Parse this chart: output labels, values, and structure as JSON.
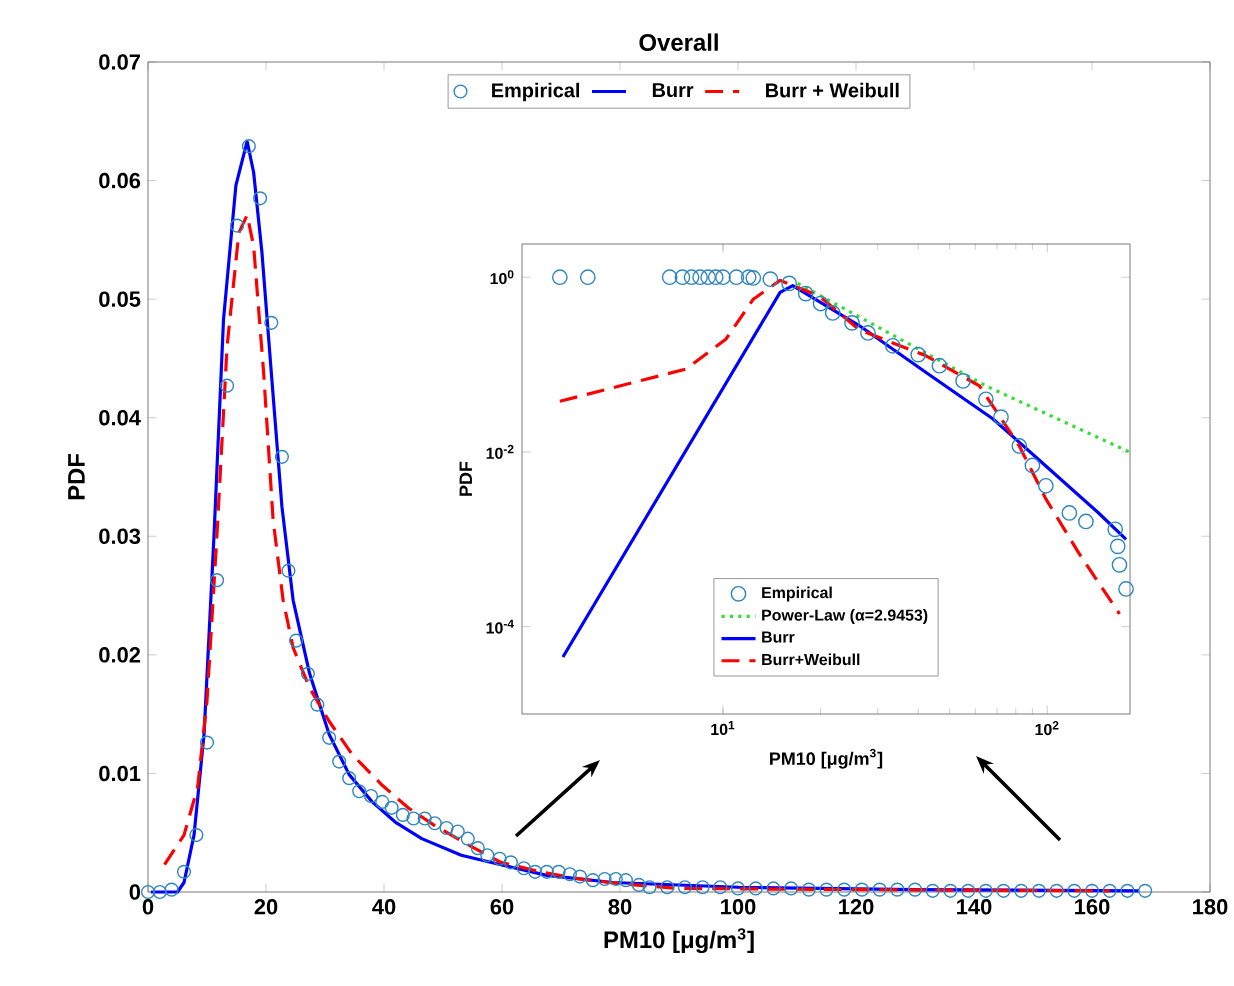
{
  "chart_data": [
    {
      "type": "line",
      "title": "Overall",
      "xlabel": "PM10 [μg/m$^{3}$]",
      "ylabel": "PDF",
      "xlim": [
        0,
        180
      ],
      "ylim": [
        0,
        0.07
      ],
      "xticks": [
        0,
        20,
        40,
        60,
        80,
        100,
        120,
        140,
        160,
        180
      ],
      "yticks": [
        0,
        0.01,
        0.02,
        0.03,
        0.04,
        0.05,
        0.06,
        0.07
      ],
      "legend": "top",
      "series": [
        {
          "name": "Empirical",
          "type": "scatter",
          "marker": "circle",
          "color": "#2e86c1",
          "x": [
            0,
            2,
            4,
            6.1,
            8.2,
            10,
            11.7,
            13.4,
            15.1,
            17.1,
            19,
            20.9,
            22.7,
            23.8,
            25.1,
            27.1,
            28.7,
            30.7,
            32.4,
            34.1,
            35.8,
            37.8,
            39.7,
            41.3,
            43.2,
            45,
            46.9,
            48.6,
            50.6,
            52.5,
            54.2,
            55.9,
            57.5,
            59.6,
            61.5,
            63.7,
            65.6,
            67.6,
            69.6,
            71.5,
            73.2,
            75.4,
            77.4,
            79.3,
            81,
            83.2,
            85,
            88,
            91,
            94,
            97,
            100,
            103,
            106,
            109,
            112,
            115,
            118,
            121,
            124,
            127,
            130,
            133,
            136,
            139,
            142,
            145,
            148,
            151,
            154,
            157,
            160,
            163,
            166,
            169
          ],
          "values": [
            0,
            0,
            0.0002,
            0.0017,
            0.0048,
            0.0126,
            0.0263,
            0.0427,
            0.0562,
            0.0629,
            0.0585,
            0.048,
            0.0367,
            0.0271,
            0.0212,
            0.0184,
            0.0158,
            0.013,
            0.011,
            0.0096,
            0.0085,
            0.0081,
            0.0076,
            0.0071,
            0.0065,
            0.0062,
            0.0062,
            0.0058,
            0.0054,
            0.0051,
            0.0045,
            0.0037,
            0.0031,
            0.0028,
            0.0025,
            0.002,
            0.0017,
            0.0017,
            0.0017,
            0.0015,
            0.0013,
            0.001,
            0.0011,
            0.0011,
            0.001,
            0.0006,
            0.0004,
            0.0004,
            0.0004,
            0.0004,
            0.0004,
            0.0003,
            0.0003,
            0.0003,
            0.0003,
            0.0002,
            0.0002,
            0.0002,
            0.0002,
            0.0002,
            0.0002,
            0.0002,
            0.0001,
            0.0001,
            0.0001,
            0.0001,
            0.0001,
            0.0001,
            0.0001,
            0.0001,
            0.0001,
            0.0001,
            0.0001,
            0.0001,
            0.0001
          ]
        },
        {
          "name": "Burr",
          "type": "line",
          "line_style": "solid",
          "color": "#0000ff",
          "x": [
            0.5,
            5,
            6.1,
            7.8,
            9.5,
            11.2,
            12.8,
            14.9,
            16.8,
            17.9,
            19.3,
            20.9,
            22.7,
            24.6,
            27.4,
            30.7,
            34.1,
            38,
            41.9,
            46.4,
            53.1,
            59.8,
            67.6,
            78.8,
            100,
            130,
            168
          ],
          "values": [
            0,
            0,
            0.0008,
            0.0048,
            0.0133,
            0.0302,
            0.0483,
            0.0596,
            0.0633,
            0.0607,
            0.054,
            0.0438,
            0.0325,
            0.0246,
            0.0184,
            0.0133,
            0.0099,
            0.0076,
            0.0059,
            0.0045,
            0.0031,
            0.0023,
            0.0014,
            0.0008,
            0.0004,
            0.0002,
            0.0001
          ]
        },
        {
          "name": "Burr + Weibull",
          "type": "line",
          "line_style": "dashed",
          "color": "#ff0000",
          "x": [
            2.8,
            6.1,
            8.4,
            10,
            11.7,
            13.4,
            15.4,
            16.8,
            17.9,
            19.6,
            21.2,
            22.9,
            24.6,
            27.4,
            30.7,
            34.6,
            39.7,
            44.1,
            48.6,
            54.2,
            59.8,
            66.5,
            73.2,
            79.9,
            90,
            120,
            163
          ],
          "values": [
            0.0023,
            0.0048,
            0.0088,
            0.0161,
            0.0302,
            0.046,
            0.0556,
            0.0571,
            0.0545,
            0.0438,
            0.0314,
            0.0246,
            0.0206,
            0.0172,
            0.0144,
            0.0116,
            0.009,
            0.0071,
            0.0056,
            0.004,
            0.0025,
            0.0017,
            0.0011,
            0.0007,
            0.0003,
            0.0002,
            0.0001
          ]
        }
      ]
    },
    {
      "type": "line",
      "xlabel": "PM10 [μg/m$^{3}$]",
      "ylabel": "PDF",
      "log": "xy",
      "xlim": [
        2.4,
        180
      ],
      "ylim": [
        1e-05,
        2.4
      ],
      "xticks": [
        {
          "value": 10,
          "label": "10$^{1}$"
        },
        {
          "value": 100,
          "label": "10$^{2}$"
        }
      ],
      "yticks": [
        {
          "value": 0.0001,
          "label": "10$^{-4}$"
        },
        {
          "value": 0.01,
          "label": "10$^{-2}$"
        },
        {
          "value": 1,
          "label": "10$^{0}$"
        }
      ],
      "legend": "bottom",
      "series": [
        {
          "name": "Empirical",
          "type": "scatter",
          "marker": "circle",
          "color": "#2e86c1",
          "x": [
            3.14,
            3.83,
            6.85,
            7.5,
            8,
            8.5,
            9,
            9.5,
            10,
            11,
            12,
            12.4,
            14,
            16,
            18,
            20,
            21.8,
            25,
            28,
            33.4,
            40,
            46.5,
            55,
            64.7,
            72,
            82,
            90,
            99,
            117,
            131.6,
            162,
            165,
            167,
            175
          ],
          "values": [
            1,
            1,
            1,
            1,
            1,
            1,
            1,
            1,
            1,
            1,
            1,
            0.98,
            0.95,
            0.85,
            0.65,
            0.5,
            0.39,
            0.3,
            0.23,
            0.164,
            0.13,
            0.097,
            0.065,
            0.04,
            0.025,
            0.0117,
            0.007,
            0.0041,
            0.002,
            0.0016,
            0.0013,
            0.00083,
            0.00051,
            0.00027
          ]
        },
        {
          "name": "Power-Law (α=2.9453)",
          "type": "line",
          "line_style": "dotted",
          "color": "#33dd33",
          "x": [
            17,
            64.7,
            179
          ],
          "values": [
            0.85,
            0.057,
            0.01
          ]
        },
        {
          "name": "Burr",
          "type": "line",
          "line_style": "solid",
          "color": "#0000ff",
          "x": [
            3.21,
            15,
            16.4,
            26.3,
            42.3,
            67.9,
            99,
            144,
            175
          ],
          "values": [
            4.5e-05,
            0.67,
            0.8,
            0.28,
            0.081,
            0.024,
            0.0069,
            0.002,
            0.001
          ]
        },
        {
          "name": "Burr+Weibull",
          "type": "line",
          "line_style": "dashed",
          "color": "#ff0000",
          "x": [
            3.14,
            7.7,
            10.2,
            12.4,
            15,
            19.8,
            26.3,
            42.3,
            61.8,
            82,
            99,
            125,
            167
          ],
          "values": [
            0.038,
            0.089,
            0.195,
            0.56,
            0.92,
            0.61,
            0.25,
            0.126,
            0.057,
            0.0117,
            0.0029,
            0.0007,
            0.00014
          ]
        }
      ]
    }
  ]
}
